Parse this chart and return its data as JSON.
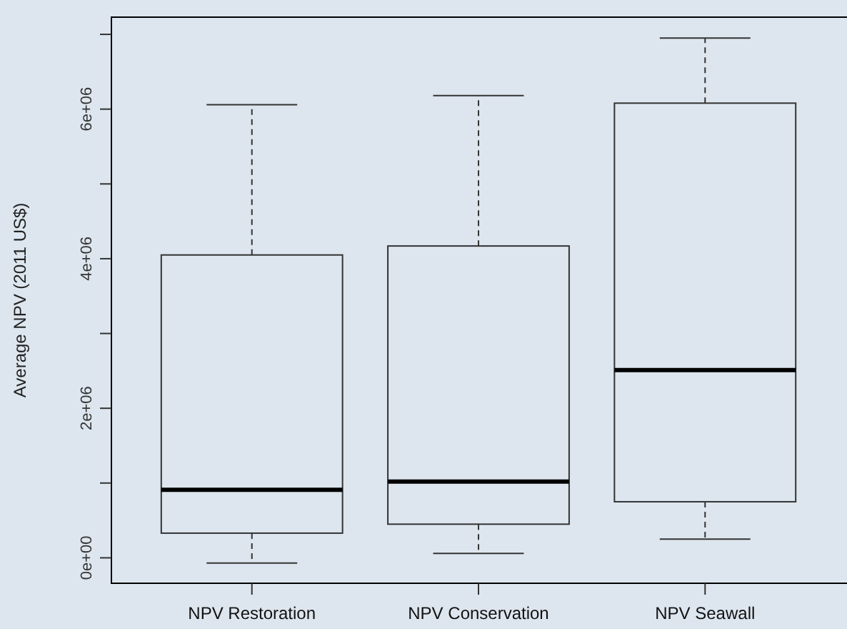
{
  "chart_data": {
    "type": "box",
    "ylabel": "Average NPV (2011 US$)",
    "categories": [
      "NPV Restoration",
      "NPV Conservation",
      "NPV Seawall"
    ],
    "boxes": [
      {
        "low": -70000,
        "q1": 330000,
        "median": 910000,
        "q3": 4050000,
        "high": 6060000
      },
      {
        "low": 60000,
        "q1": 450000,
        "median": 1020000,
        "q3": 4170000,
        "high": 6180000
      },
      {
        "low": 250000,
        "q1": 750000,
        "median": 2510000,
        "q3": 6080000,
        "high": 6950000
      }
    ],
    "ylim": [
      -340000,
      7230000
    ],
    "yticks": [
      {
        "value": 0,
        "label": "0e+00"
      },
      {
        "value": 1000000,
        "label": null
      },
      {
        "value": 2000000,
        "label": "2e+06"
      },
      {
        "value": 3000000,
        "label": null
      },
      {
        "value": 4000000,
        "label": "4e+06"
      },
      {
        "value": 5000000,
        "label": null
      },
      {
        "value": 6000000,
        "label": "6e+06"
      },
      {
        "value": 7000000,
        "label": null
      }
    ],
    "color": "#333333"
  }
}
